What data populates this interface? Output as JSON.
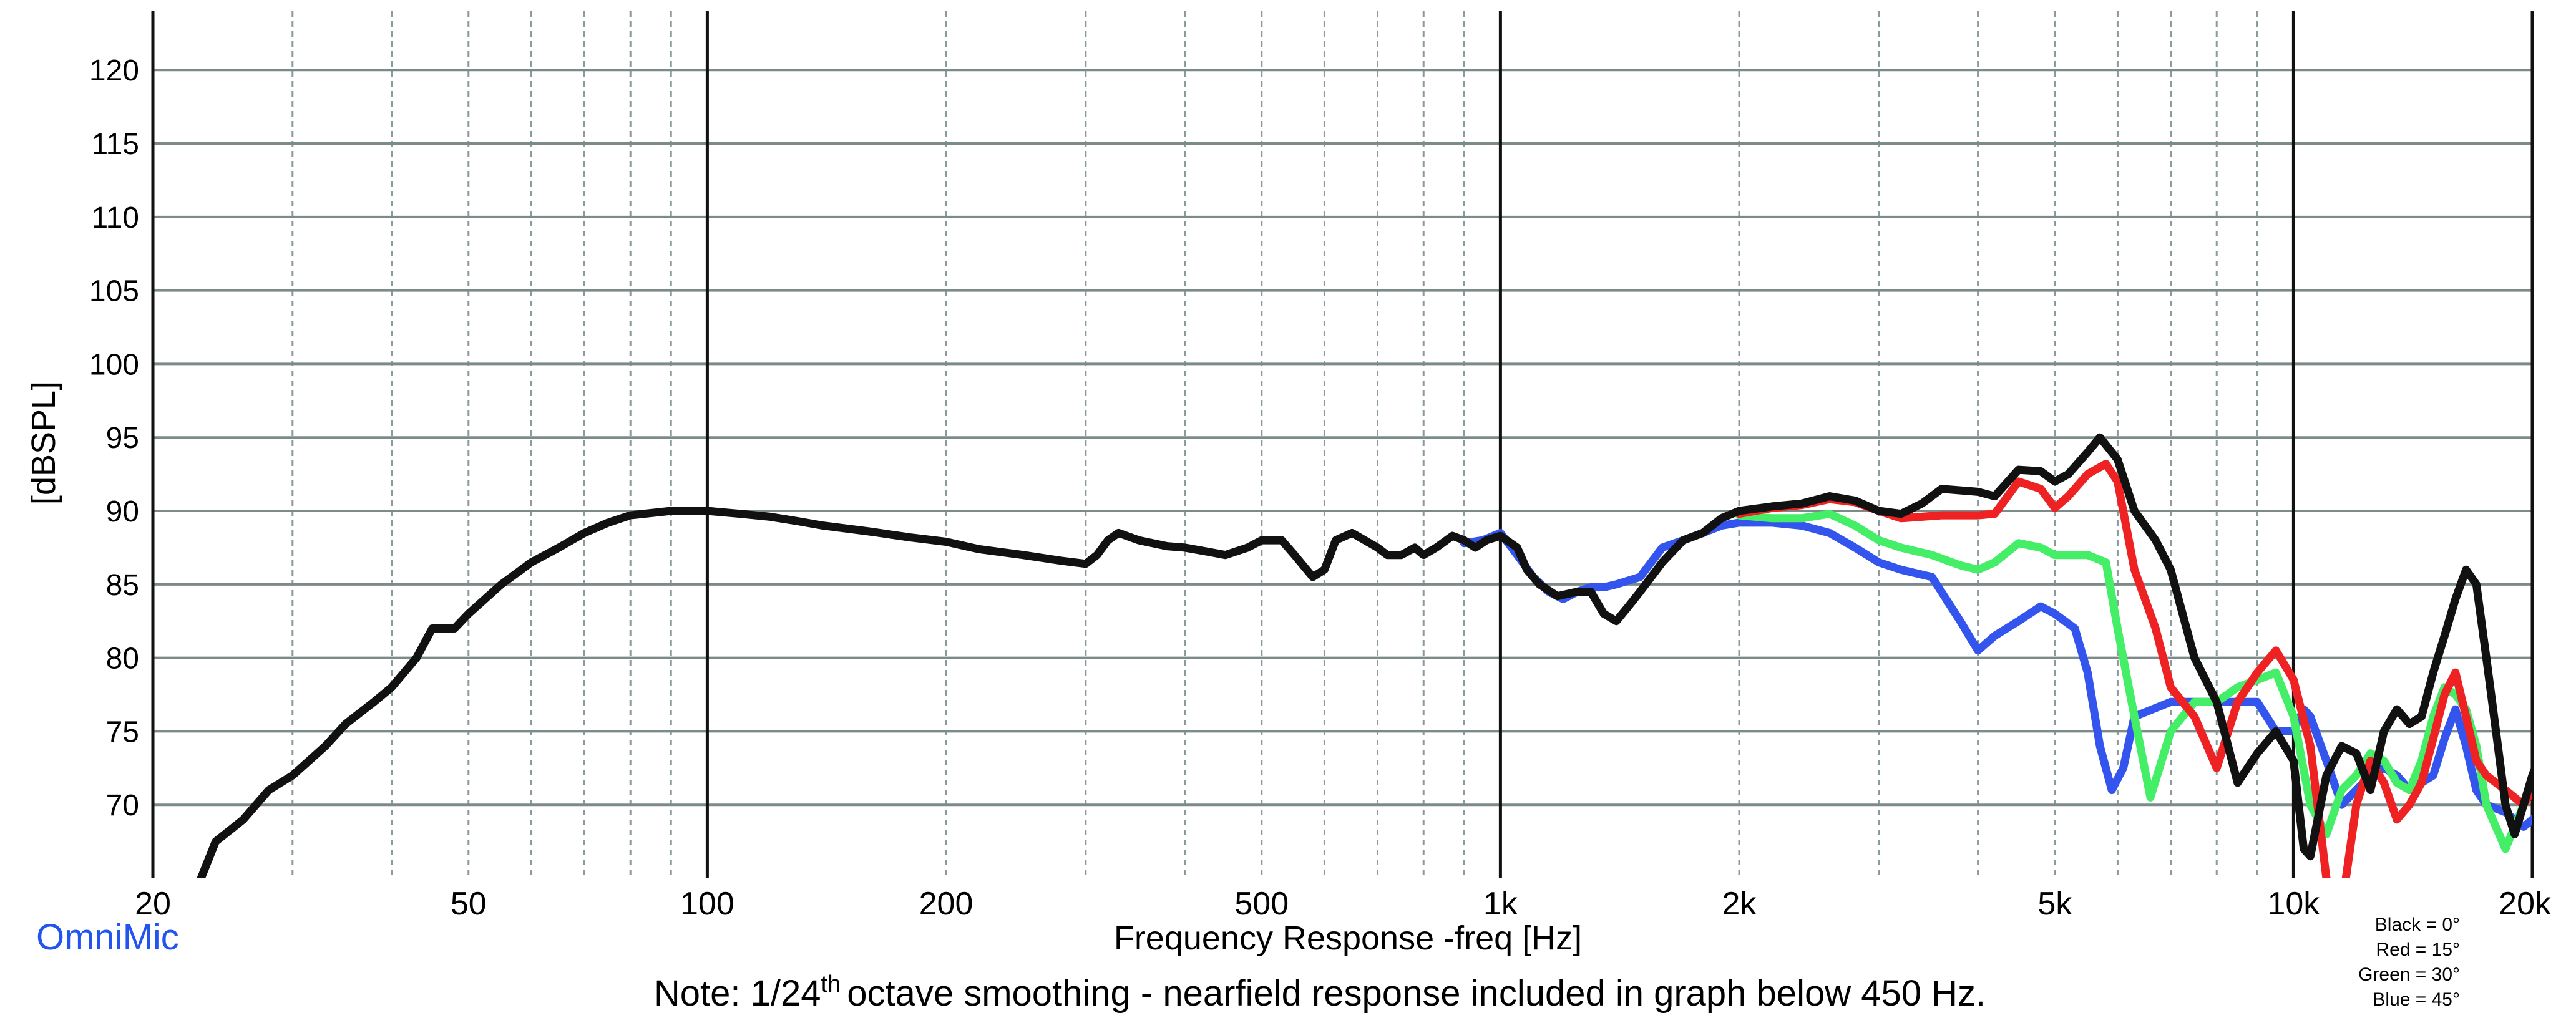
{
  "chart_data": {
    "type": "line",
    "title": "",
    "xlabel": "Frequency Response -freq [Hz]",
    "ylabel": "[dBSPL]",
    "x_scale": "log",
    "xlim": [
      20,
      20000
    ],
    "ylim": [
      65,
      124
    ],
    "grid": true,
    "x_tick_labels": [
      {
        "value": 20,
        "label": "20"
      },
      {
        "value": 50,
        "label": "50"
      },
      {
        "value": 100,
        "label": "100"
      },
      {
        "value": 200,
        "label": "200"
      },
      {
        "value": 500,
        "label": "500"
      },
      {
        "value": 1000,
        "label": "1k"
      },
      {
        "value": 2000,
        "label": "2k"
      },
      {
        "value": 5000,
        "label": "5k"
      },
      {
        "value": 10000,
        "label": "10k"
      },
      {
        "value": 20000,
        "label": "20k"
      }
    ],
    "y_ticks": [
      70,
      75,
      80,
      85,
      90,
      95,
      100,
      105,
      110,
      115,
      120
    ],
    "series": [
      {
        "name": "Black = 0°",
        "color": "#111111",
        "points": [
          [
            23,
            65
          ],
          [
            24,
            67.5
          ],
          [
            26,
            69
          ],
          [
            28,
            71
          ],
          [
            30,
            72
          ],
          [
            33,
            74
          ],
          [
            35,
            75.5
          ],
          [
            38,
            77
          ],
          [
            40,
            78
          ],
          [
            43,
            80
          ],
          [
            45,
            82
          ],
          [
            48,
            82
          ],
          [
            50,
            83
          ],
          [
            55,
            85
          ],
          [
            60,
            86.5
          ],
          [
            65,
            87.5
          ],
          [
            70,
            88.5
          ],
          [
            75,
            89.2
          ],
          [
            80,
            89.7
          ],
          [
            90,
            90
          ],
          [
            100,
            90
          ],
          [
            110,
            89.8
          ],
          [
            120,
            89.6
          ],
          [
            130,
            89.3
          ],
          [
            140,
            89
          ],
          [
            160,
            88.6
          ],
          [
            180,
            88.2
          ],
          [
            200,
            87.9
          ],
          [
            220,
            87.4
          ],
          [
            250,
            87
          ],
          [
            280,
            86.6
          ],
          [
            300,
            86.4
          ],
          [
            310,
            87
          ],
          [
            320,
            88
          ],
          [
            330,
            88.5
          ],
          [
            350,
            88
          ],
          [
            380,
            87.6
          ],
          [
            400,
            87.5
          ],
          [
            430,
            87.2
          ],
          [
            450,
            87
          ],
          [
            480,
            87.5
          ],
          [
            500,
            88
          ],
          [
            530,
            88
          ],
          [
            550,
            87
          ],
          [
            580,
            85.5
          ],
          [
            600,
            86
          ],
          [
            620,
            88
          ],
          [
            650,
            88.5
          ],
          [
            700,
            87.5
          ],
          [
            720,
            87
          ],
          [
            750,
            87
          ],
          [
            780,
            87.5
          ],
          [
            800,
            87
          ],
          [
            830,
            87.5
          ],
          [
            870,
            88.3
          ],
          [
            900,
            88
          ],
          [
            930,
            87.5
          ],
          [
            960,
            88
          ],
          [
            1000,
            88.3
          ],
          [
            1050,
            87.5
          ],
          [
            1080,
            86
          ],
          [
            1120,
            85
          ],
          [
            1180,
            84.2
          ],
          [
            1250,
            84.5
          ],
          [
            1300,
            84.5
          ],
          [
            1350,
            83
          ],
          [
            1400,
            82.5
          ],
          [
            1450,
            83.5
          ],
          [
            1500,
            84.5
          ],
          [
            1600,
            86.5
          ],
          [
            1700,
            88
          ],
          [
            1800,
            88.5
          ],
          [
            1900,
            89.5
          ],
          [
            2000,
            90
          ],
          [
            2200,
            90.3
          ],
          [
            2400,
            90.5
          ],
          [
            2600,
            91
          ],
          [
            2800,
            90.7
          ],
          [
            3000,
            90
          ],
          [
            3200,
            89.8
          ],
          [
            3400,
            90.5
          ],
          [
            3600,
            91.5
          ],
          [
            4000,
            91.3
          ],
          [
            4200,
            91
          ],
          [
            4500,
            92.8
          ],
          [
            4800,
            92.7
          ],
          [
            5000,
            92
          ],
          [
            5200,
            92.5
          ],
          [
            5500,
            94
          ],
          [
            5700,
            95
          ],
          [
            6000,
            93.5
          ],
          [
            6300,
            90
          ],
          [
            6700,
            88
          ],
          [
            7000,
            86
          ],
          [
            7500,
            80
          ],
          [
            8000,
            77
          ],
          [
            8500,
            71.5
          ],
          [
            9000,
            73.5
          ],
          [
            9500,
            75
          ],
          [
            10000,
            73
          ],
          [
            10300,
            67
          ],
          [
            10500,
            66.5
          ],
          [
            11000,
            72
          ],
          [
            11500,
            74
          ],
          [
            12000,
            73.5
          ],
          [
            12500,
            71
          ],
          [
            13000,
            75
          ],
          [
            13500,
            76.5
          ],
          [
            14000,
            75.5
          ],
          [
            14500,
            76
          ],
          [
            15000,
            79
          ],
          [
            15500,
            81.5
          ],
          [
            16000,
            84
          ],
          [
            16500,
            86
          ],
          [
            17000,
            85
          ],
          [
            17500,
            80
          ],
          [
            18000,
            75
          ],
          [
            18500,
            70
          ],
          [
            19000,
            68
          ],
          [
            19500,
            70
          ],
          [
            20000,
            72
          ],
          [
            21000,
            75
          ],
          [
            22000,
            76
          ],
          [
            23000,
            75.5
          ],
          [
            24000,
            77
          ],
          [
            25000,
            79
          ],
          [
            26000,
            80
          ]
        ]
      },
      {
        "name": "Red = 15°",
        "color": "#ee2222",
        "points": [
          [
            2000,
            89.8
          ],
          [
            2200,
            90.2
          ],
          [
            2400,
            90.4
          ],
          [
            2600,
            90.8
          ],
          [
            2800,
            90.6
          ],
          [
            3000,
            90
          ],
          [
            3200,
            89.5
          ],
          [
            3600,
            89.7
          ],
          [
            4000,
            89.7
          ],
          [
            4200,
            89.8
          ],
          [
            4500,
            92
          ],
          [
            4800,
            91.5
          ],
          [
            5000,
            90.2
          ],
          [
            5200,
            91
          ],
          [
            5500,
            92.5
          ],
          [
            5800,
            93.2
          ],
          [
            6000,
            92
          ],
          [
            6300,
            86
          ],
          [
            6700,
            82
          ],
          [
            7000,
            78
          ],
          [
            7500,
            76
          ],
          [
            8000,
            72.5
          ],
          [
            8500,
            77
          ],
          [
            9000,
            79
          ],
          [
            9500,
            80.5
          ],
          [
            10000,
            78.5
          ],
          [
            10500,
            74
          ],
          [
            11000,
            65
          ],
          [
            11500,
            63
          ],
          [
            12000,
            70
          ],
          [
            12500,
            73
          ],
          [
            13000,
            71.5
          ],
          [
            13500,
            69
          ],
          [
            14000,
            70
          ],
          [
            14500,
            71.5
          ],
          [
            15000,
            74.5
          ],
          [
            15500,
            77.5
          ],
          [
            16000,
            79
          ],
          [
            16500,
            76
          ],
          [
            17000,
            73
          ],
          [
            17500,
            72
          ],
          [
            18500,
            71
          ],
          [
            19500,
            70
          ],
          [
            20000,
            71
          ],
          [
            21000,
            73.5
          ],
          [
            22000,
            74.5
          ],
          [
            23000,
            73
          ],
          [
            24000,
            74
          ],
          [
            25000,
            74.8
          ],
          [
            26000,
            75
          ]
        ]
      },
      {
        "name": "Green = 30°",
        "color": "#44ee66",
        "points": [
          [
            2000,
            89.7
          ],
          [
            2200,
            89.5
          ],
          [
            2400,
            89.5
          ],
          [
            2600,
            89.8
          ],
          [
            2800,
            89
          ],
          [
            3000,
            88
          ],
          [
            3200,
            87.5
          ],
          [
            3500,
            87
          ],
          [
            3800,
            86.3
          ],
          [
            4000,
            86
          ],
          [
            4200,
            86.5
          ],
          [
            4500,
            87.8
          ],
          [
            4800,
            87.5
          ],
          [
            5000,
            87
          ],
          [
            5500,
            87
          ],
          [
            5800,
            86.5
          ],
          [
            6000,
            82
          ],
          [
            6300,
            76
          ],
          [
            6600,
            70.5
          ],
          [
            7000,
            75
          ],
          [
            7500,
            77
          ],
          [
            8000,
            77
          ],
          [
            8500,
            78
          ],
          [
            9000,
            78.5
          ],
          [
            9500,
            79
          ],
          [
            10000,
            76
          ],
          [
            10500,
            70
          ],
          [
            11000,
            68
          ],
          [
            11500,
            71
          ],
          [
            12000,
            72
          ],
          [
            12500,
            73.5
          ],
          [
            13000,
            73
          ],
          [
            13500,
            71.5
          ],
          [
            14000,
            71
          ],
          [
            14500,
            73
          ],
          [
            15000,
            76
          ],
          [
            15500,
            78
          ],
          [
            16000,
            77.5
          ],
          [
            16500,
            76.5
          ],
          [
            17000,
            74
          ],
          [
            17500,
            70
          ],
          [
            18500,
            67
          ],
          [
            19500,
            70
          ],
          [
            20000,
            71.5
          ],
          [
            21000,
            74
          ],
          [
            22000,
            74
          ],
          [
            23000,
            71.5
          ],
          [
            24000,
            69
          ],
          [
            25000,
            67
          ],
          [
            26000,
            65
          ]
        ]
      },
      {
        "name": "Blue = 45°",
        "color": "#3355ee",
        "points": [
          [
            900,
            87.8
          ],
          [
            950,
            88
          ],
          [
            1000,
            88.5
          ],
          [
            1050,
            87
          ],
          [
            1100,
            85.5
          ],
          [
            1150,
            84.5
          ],
          [
            1200,
            84
          ],
          [
            1250,
            84.5
          ],
          [
            1300,
            84.8
          ],
          [
            1350,
            84.8
          ],
          [
            1400,
            85
          ],
          [
            1500,
            85.5
          ],
          [
            1600,
            87.5
          ],
          [
            1700,
            88
          ],
          [
            1800,
            88.5
          ],
          [
            1900,
            89
          ],
          [
            2000,
            89.2
          ],
          [
            2200,
            89.2
          ],
          [
            2400,
            89
          ],
          [
            2600,
            88.5
          ],
          [
            2800,
            87.5
          ],
          [
            3000,
            86.5
          ],
          [
            3200,
            86
          ],
          [
            3500,
            85.5
          ],
          [
            3800,
            82.5
          ],
          [
            4000,
            80.5
          ],
          [
            4200,
            81.5
          ],
          [
            4500,
            82.5
          ],
          [
            4800,
            83.5
          ],
          [
            5000,
            83
          ],
          [
            5300,
            82
          ],
          [
            5500,
            79
          ],
          [
            5700,
            74
          ],
          [
            5900,
            71
          ],
          [
            6100,
            72.5
          ],
          [
            6300,
            76
          ],
          [
            7000,
            77
          ],
          [
            8000,
            77
          ],
          [
            9000,
            77
          ],
          [
            9500,
            75
          ],
          [
            10000,
            75
          ],
          [
            10300,
            76.5
          ],
          [
            10500,
            76
          ],
          [
            11000,
            73
          ],
          [
            11500,
            70
          ],
          [
            12000,
            71
          ],
          [
            12500,
            72
          ],
          [
            13000,
            72.5
          ],
          [
            13500,
            72
          ],
          [
            14000,
            71
          ],
          [
            14500,
            71.5
          ],
          [
            15000,
            72
          ],
          [
            15500,
            74.5
          ],
          [
            16000,
            76.5
          ],
          [
            16500,
            74
          ],
          [
            17000,
            71
          ],
          [
            17500,
            70
          ],
          [
            18500,
            69.5
          ],
          [
            19500,
            68.5
          ],
          [
            20000,
            69
          ],
          [
            21000,
            70
          ],
          [
            22000,
            71.5
          ],
          [
            23000,
            69
          ],
          [
            24000,
            65
          ],
          [
            25000,
            64
          ],
          [
            26000,
            64
          ]
        ]
      }
    ]
  },
  "branding": {
    "text": "OmniMic",
    "color": "#2255ee"
  },
  "note": {
    "prefix": "Note: 1/24",
    "superscript": "th",
    "suffix": "octave smoothing - nearfield response included in graph below 450 Hz."
  },
  "legend_lines": [
    "Black = 0°",
    "Red = 15°",
    "Green = 30°",
    "Blue = 45°"
  ]
}
